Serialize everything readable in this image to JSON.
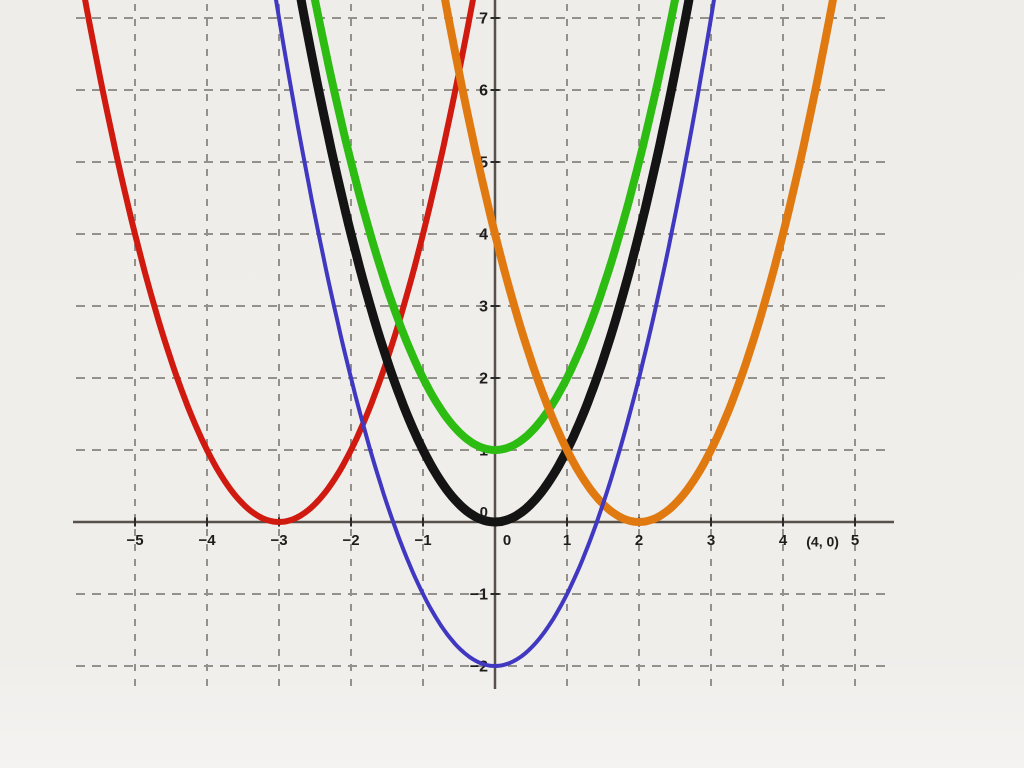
{
  "chart_data": {
    "type": "line",
    "subtype": "parabola-family-graph",
    "title": "",
    "xlabel": "",
    "ylabel": "",
    "grid": "dashed, 1-unit spacing, both directions",
    "legend": "none",
    "axes": {
      "x_tick_values": [
        -5,
        -4,
        -3,
        -2,
        -1,
        0,
        1,
        2,
        3,
        4,
        5
      ],
      "x_tick_labels": [
        "−5",
        "−4",
        "−3",
        "−2",
        "−1",
        "0",
        "1",
        "2",
        "3",
        "4",
        "5"
      ],
      "y_tick_values": [
        -2,
        -1,
        0,
        1,
        2,
        3,
        4,
        5,
        6,
        7
      ],
      "y_tick_labels": [
        "−2",
        "−1",
        "0",
        "1",
        "2",
        "3",
        "4",
        "5",
        "6",
        "7"
      ],
      "x_visible_range": [
        -6.9,
        7.3
      ],
      "y_visible_range": [
        -3.4,
        7.25
      ]
    },
    "series": [
      {
        "name": "red-parabola",
        "equation": "y = (x + 3)^2",
        "a": 1,
        "vertex": [
          -3,
          0
        ],
        "x_intercepts": [
          -3
        ],
        "y_intercept": 9,
        "color": "#d01a10",
        "stroke_width": 6
      },
      {
        "name": "green-parabola",
        "equation": "y = x^2 + 1",
        "a": 1,
        "vertex": [
          0,
          1
        ],
        "x_intercepts": [],
        "y_intercept": 1,
        "color": "#2cbc12",
        "stroke_width": 8
      },
      {
        "name": "black-parabola",
        "equation": "y = x^2",
        "a": 1,
        "vertex": [
          0,
          0
        ],
        "x_intercepts": [
          0
        ],
        "y_intercept": 0,
        "color": "#141414",
        "stroke_width": 9
      },
      {
        "name": "orange-parabola",
        "equation": "y = (x − 2)^2",
        "a": 1,
        "vertex": [
          2,
          0
        ],
        "x_intercepts": [
          2
        ],
        "y_intercept": 4,
        "color": "#e07a10",
        "stroke_width": 8
      },
      {
        "name": "blue-parabola",
        "equation": "y = x^2 − 2",
        "a": 1,
        "vertex": [
          0,
          -2
        ],
        "x_intercepts": [
          -1.41,
          1.41
        ],
        "y_intercept": -2,
        "color": "#4038c0",
        "stroke_width": 4
      }
    ],
    "z_order_bottom_to_top": [
      "red-parabola",
      "green-parabola",
      "black-parabola",
      "orange-parabola",
      "blue-parabola"
    ],
    "annotations": [
      {
        "text": "(4, 0)",
        "x": 4.55,
        "y": -0.27
      }
    ]
  },
  "style": {
    "background": "#f0eeeb",
    "axis_color": "#57504b",
    "grid_color": "#94908c",
    "tick_color": "#2a2a2a",
    "label_color": "#1f1d1b"
  }
}
